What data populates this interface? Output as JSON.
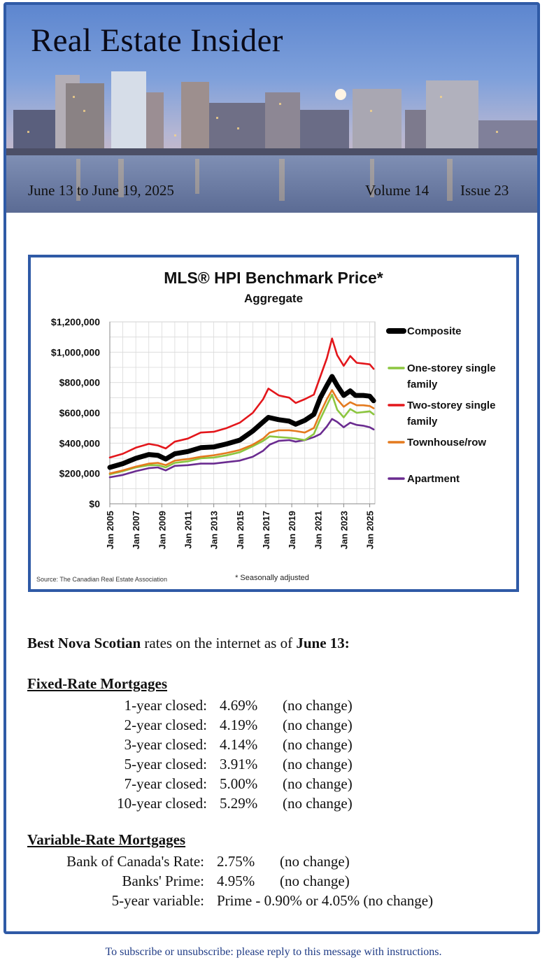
{
  "header": {
    "title": "Real Estate Insider",
    "date_range": "June 13 to June 19, 2025",
    "volume": "Volume 14",
    "issue": "Issue 23"
  },
  "colors": {
    "frame": "#2f5aa6",
    "composite": "#000000",
    "one_storey": "#8cc63f",
    "two_storey": "#e3161b",
    "townhouse": "#e47a1e",
    "apartment": "#6a2b90"
  },
  "chart_data": {
    "type": "line",
    "title": "MLS® HPI Benchmark Price*",
    "subtitle": "Aggregate",
    "source": "Source: The Canadian Real Estate Association",
    "note": "* Seasonally adjusted",
    "ylim": [
      0,
      1200000
    ],
    "yticks": [
      "$1,200,000",
      "$1,000,000",
      "$800,000",
      "$600,000",
      "$400,000",
      "$200,000",
      "$0"
    ],
    "ytick_values": [
      1200000,
      1000000,
      800000,
      600000,
      400000,
      200000,
      0
    ],
    "xlim": [
      2005,
      2025.4
    ],
    "xticks": [
      "Jan 2005",
      "Jan 2007",
      "Jan 2009",
      "Jan 2011",
      "Jan 2013",
      "Jan 2015",
      "Jan 2017",
      "Jan 2019",
      "Jan 2021",
      "Jan 2023",
      "Jan 2025"
    ],
    "xtick_values": [
      2005,
      2007,
      2009,
      2011,
      2013,
      2015,
      2017,
      2019,
      2021,
      2023,
      2025
    ],
    "grid": true,
    "legend_position": "right",
    "series": [
      {
        "name": "Composite",
        "x": [
          2005,
          2006,
          2007,
          2008,
          2008.7,
          2009.3,
          2010,
          2011,
          2012,
          2013,
          2014,
          2015,
          2016,
          2016.8,
          2017.2,
          2018,
          2018.8,
          2019.3,
          2020,
          2020.7,
          2021.2,
          2021.7,
          2022.1,
          2022.5,
          2023,
          2023.5,
          2023.9,
          2024.5,
          2025,
          2025.3
        ],
        "y": [
          240000,
          265000,
          300000,
          325000,
          320000,
          295000,
          330000,
          345000,
          370000,
          375000,
          395000,
          420000,
          480000,
          540000,
          570000,
          555000,
          545000,
          525000,
          550000,
          590000,
          700000,
          780000,
          840000,
          780000,
          715000,
          745000,
          715000,
          715000,
          710000,
          680000
        ]
      },
      {
        "name": "One-storey single family",
        "x": [
          2005,
          2006,
          2007,
          2008,
          2008.7,
          2009.3,
          2010,
          2011,
          2012,
          2013,
          2014,
          2015,
          2016,
          2016.8,
          2017.3,
          2018,
          2018.8,
          2019.3,
          2020,
          2020.7,
          2021.2,
          2021.7,
          2022.1,
          2022.5,
          2023,
          2023.5,
          2024,
          2024.5,
          2025,
          2025.3
        ],
        "y": [
          195000,
          215000,
          240000,
          255000,
          255000,
          240000,
          270000,
          280000,
          300000,
          305000,
          320000,
          340000,
          380000,
          415000,
          445000,
          440000,
          435000,
          430000,
          420000,
          460000,
          560000,
          650000,
          720000,
          620000,
          570000,
          625000,
          600000,
          605000,
          610000,
          590000
        ]
      },
      {
        "name": "Two-storey single family",
        "x": [
          2005,
          2006,
          2007,
          2008,
          2008.7,
          2009.3,
          2010,
          2011,
          2012,
          2013,
          2014,
          2015,
          2016,
          2016.8,
          2017.2,
          2018,
          2018.8,
          2019.3,
          2020,
          2020.7,
          2021.2,
          2021.7,
          2022.1,
          2022.5,
          2023,
          2023.5,
          2024,
          2024.5,
          2025,
          2025.3
        ],
        "y": [
          305000,
          330000,
          370000,
          395000,
          385000,
          365000,
          410000,
          430000,
          470000,
          475000,
          500000,
          535000,
          600000,
          690000,
          760000,
          715000,
          700000,
          665000,
          690000,
          720000,
          840000,
          960000,
          1090000,
          980000,
          910000,
          975000,
          930000,
          925000,
          920000,
          890000
        ]
      },
      {
        "name": "Townhouse/row",
        "x": [
          2005,
          2006,
          2007,
          2008,
          2008.7,
          2009.3,
          2010,
          2011,
          2012,
          2013,
          2014,
          2015,
          2016,
          2016.8,
          2017.3,
          2018,
          2018.8,
          2019.3,
          2020,
          2020.7,
          2021.2,
          2021.7,
          2022.1,
          2022.5,
          2023,
          2023.5,
          2024,
          2024.5,
          2025,
          2025.3
        ],
        "y": [
          200000,
          220000,
          245000,
          265000,
          270000,
          255000,
          285000,
          295000,
          310000,
          320000,
          335000,
          355000,
          390000,
          430000,
          470000,
          485000,
          485000,
          480000,
          470000,
          500000,
          600000,
          690000,
          750000,
          690000,
          640000,
          670000,
          650000,
          650000,
          645000,
          630000
        ]
      },
      {
        "name": "Apartment",
        "x": [
          2005,
          2006,
          2007,
          2008,
          2008.7,
          2009.3,
          2010,
          2011,
          2012,
          2013,
          2014,
          2015,
          2016,
          2016.8,
          2017.3,
          2018,
          2018.8,
          2019.3,
          2020,
          2020.7,
          2021.2,
          2021.7,
          2022.1,
          2022.5,
          2023,
          2023.5,
          2024,
          2024.5,
          2025,
          2025.3
        ],
        "y": [
          175000,
          190000,
          215000,
          235000,
          240000,
          220000,
          250000,
          255000,
          265000,
          265000,
          275000,
          285000,
          310000,
          350000,
          390000,
          415000,
          420000,
          410000,
          420000,
          440000,
          460000,
          510000,
          560000,
          540000,
          505000,
          535000,
          520000,
          515000,
          505000,
          490000
        ]
      }
    ]
  },
  "rates": {
    "headline_bold1": "Best Nova Scotian",
    "headline_mid": " rates on the internet as of ",
    "headline_bold2": "June 13:",
    "fixed_heading": "Fixed-Rate Mortgages",
    "fixed": [
      {
        "label": "1-year closed:",
        "rate": "4.69%",
        "change": "(no change)"
      },
      {
        "label": "2-year closed:",
        "rate": "4.19%",
        "change": "(no change)"
      },
      {
        "label": "3-year closed:",
        "rate": "4.14%",
        "change": "(no change)"
      },
      {
        "label": "5-year closed:",
        "rate": "3.91%",
        "change": "(no change)"
      },
      {
        "label": "7-year closed:",
        "rate": "5.00%",
        "change": "(no change)"
      },
      {
        "label": "10-year closed:",
        "rate": "5.29%",
        "change": "(no change)"
      }
    ],
    "variable_heading": "Variable-Rate Mortgages",
    "variable": [
      {
        "label": "Bank of Canada's Rate:",
        "rate": "2.75%",
        "change": "(no change)"
      },
      {
        "label": "Banks' Prime:",
        "rate": "4.95%",
        "change": "(no change)"
      },
      {
        "label": "5-year variable:",
        "rate": "Prime - 0.90% or 4.05% (no change)",
        "change": ""
      }
    ]
  },
  "footer": "To subscribe or unsubscribe: please reply to this message with instructions."
}
